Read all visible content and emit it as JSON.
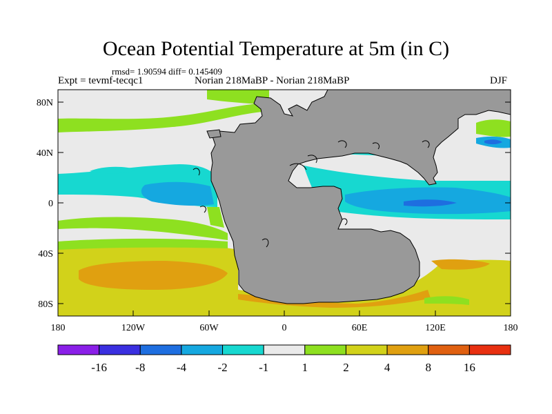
{
  "header": {
    "title": "Ocean Potential Temperature at 5m (in C)",
    "stats": "rmsd= 1.90594 diff= 0.145409",
    "expt": "Expt = tevmf-tecqc1",
    "case": "Norian 218MaBP - Norian 218MaBP",
    "season": "DJF"
  },
  "axes": {
    "y_ticks": [
      "80N",
      "40N",
      "0",
      "40S",
      "80S"
    ],
    "x_ticks": [
      "180",
      "120W",
      "60W",
      "0",
      "60E",
      "120E",
      "180"
    ]
  },
  "colorbar": {
    "colors": [
      "#8a1fe8",
      "#3a2fe0",
      "#1e6ee0",
      "#15a8e0",
      "#17d8d0",
      "#eaeaea",
      "#8ee020",
      "#d2d21a",
      "#e0a010",
      "#e06010",
      "#e83010"
    ],
    "labels": [
      "-16",
      "-8",
      "-4",
      "-2",
      "-1",
      "1",
      "2",
      "4",
      "8",
      "16"
    ]
  },
  "land_color": "#999999"
}
